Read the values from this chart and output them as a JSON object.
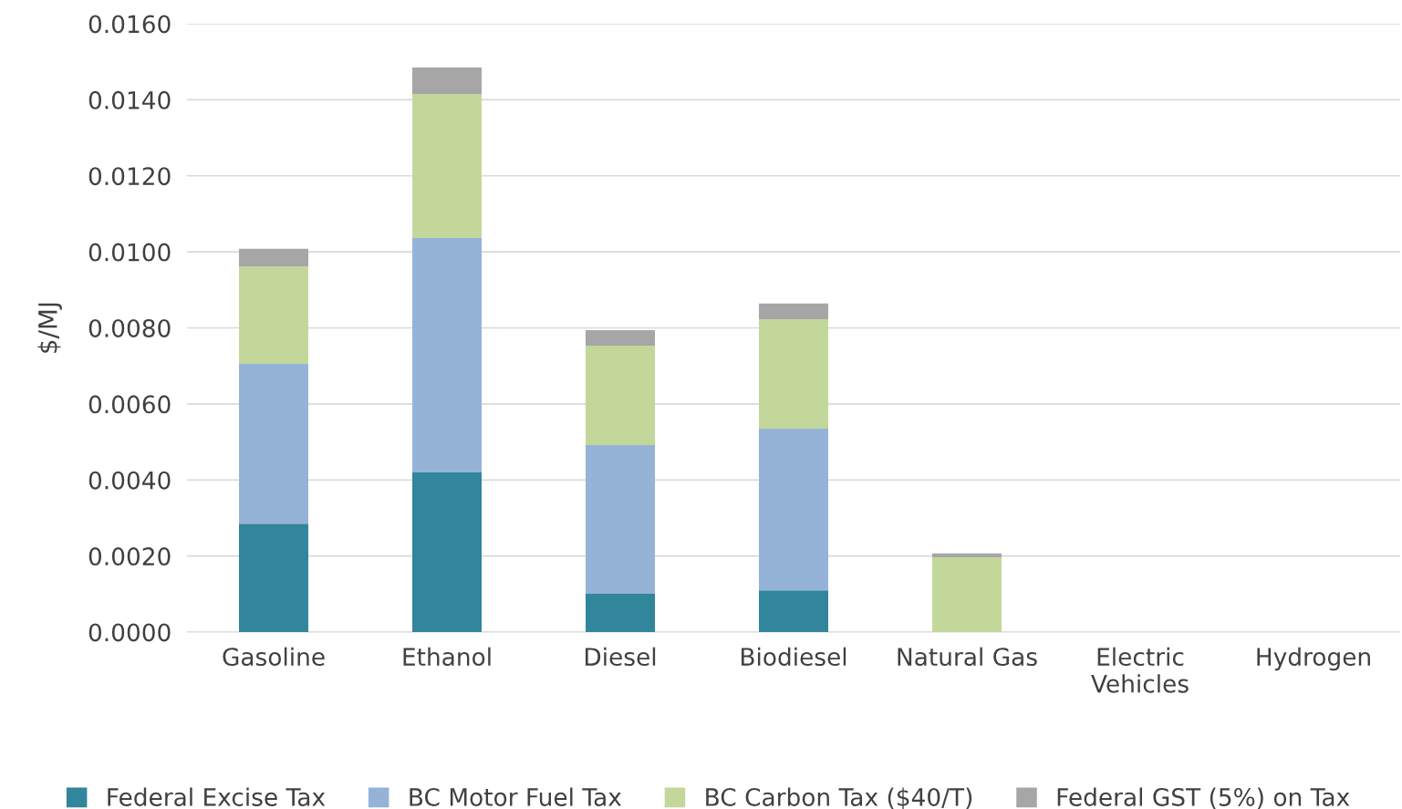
{
  "chart_data": {
    "type": "bar",
    "stacked": true,
    "ylabel": "$/MJ",
    "categories": [
      "Gasoline",
      "Ethanol",
      "Diesel",
      "Biodiesel",
      "Natural Gas",
      "Electric\nVehicles",
      "Hydrogen"
    ],
    "series": [
      {
        "name": "Federal Excise Tax",
        "color": "#31869b",
        "values": [
          0.00285,
          0.0042,
          0.00101,
          0.0011,
          0,
          0,
          0
        ]
      },
      {
        "name": "BC Motor Fuel Tax",
        "color": "#95b3d7",
        "values": [
          0.0042,
          0.00616,
          0.00391,
          0.00425,
          0,
          0,
          0
        ]
      },
      {
        "name": "BC Carbon Tax ($40/T)",
        "color": "#c4d79b",
        "values": [
          0.00257,
          0.00379,
          0.00261,
          0.00288,
          0.00197,
          0,
          0
        ]
      },
      {
        "name": "Federal GST (5%) on Tax",
        "color": "#a6a6a6",
        "values": [
          0.00046,
          0.0007,
          0.00041,
          0.00041,
          0.0001,
          0,
          0
        ]
      }
    ],
    "ylim": [
      0,
      0.016
    ],
    "yticks": [
      {
        "value": 0,
        "label": "0.0000"
      },
      {
        "value": 0.002,
        "label": "0.0020"
      },
      {
        "value": 0.004,
        "label": "0.0040"
      },
      {
        "value": 0.006,
        "label": "0.0060"
      },
      {
        "value": 0.008,
        "label": "0.0080"
      },
      {
        "value": 0.01,
        "label": "0.0100"
      },
      {
        "value": 0.012,
        "label": "0.0120"
      },
      {
        "value": 0.014,
        "label": "0.0140"
      },
      {
        "value": 0.016,
        "label": "0.0160"
      }
    ],
    "grid": "y",
    "legend": "bottom"
  }
}
